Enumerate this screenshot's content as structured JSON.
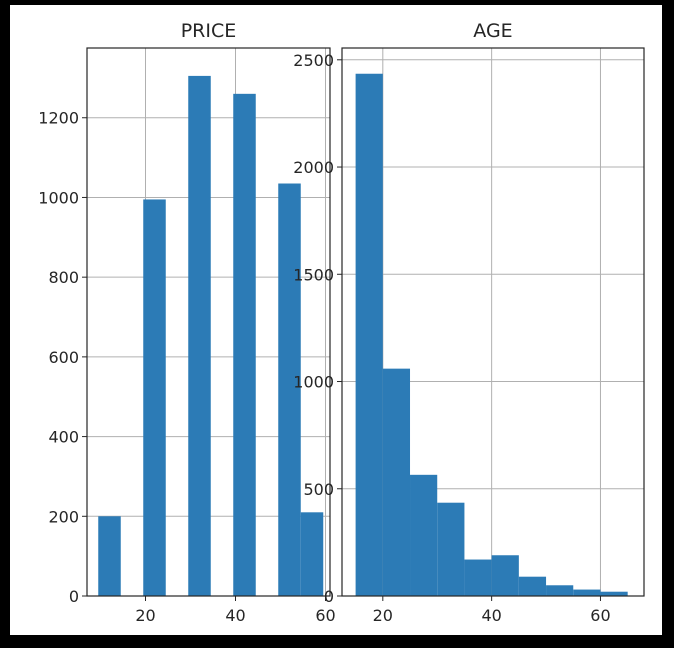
{
  "chart_data": [
    {
      "type": "bar",
      "title": "PRICE",
      "xlabel": "",
      "ylabel": "",
      "xlim": [
        7,
        61
      ],
      "ylim": [
        0,
        1375
      ],
      "bins": [
        {
          "x0": 9.5,
          "x1": 14.5,
          "value": 200
        },
        {
          "x0": 14.5,
          "x1": 19.5,
          "value": 0
        },
        {
          "x0": 19.5,
          "x1": 24.5,
          "value": 995
        },
        {
          "x0": 24.5,
          "x1": 29.5,
          "value": 0
        },
        {
          "x0": 29.5,
          "x1": 34.5,
          "value": 1305
        },
        {
          "x0": 34.5,
          "x1": 39.5,
          "value": 0
        },
        {
          "x0": 39.5,
          "x1": 44.5,
          "value": 1260
        },
        {
          "x0": 44.5,
          "x1": 49.5,
          "value": 0
        },
        {
          "x0": 49.5,
          "x1": 54.5,
          "value": 1035
        },
        {
          "x0": 54.5,
          "x1": 59.5,
          "value": 210
        }
      ],
      "xticks": [
        20,
        40,
        60
      ],
      "xtick_labels": [
        "20",
        "40",
        "60"
      ],
      "yticks": [
        0,
        200,
        400,
        600,
        800,
        1000,
        1200
      ],
      "ytick_labels": [
        "0",
        "200",
        "400",
        "600",
        "800",
        "1000",
        "1200"
      ],
      "grid": true,
      "color": "#2c7bb6"
    },
    {
      "type": "bar",
      "title": "AGE",
      "xlabel": "",
      "ylabel": "",
      "xlim": [
        12.5,
        68
      ],
      "ylim": [
        0,
        2555
      ],
      "bins": [
        {
          "x0": 15,
          "x1": 20,
          "value": 2435
        },
        {
          "x0": 20,
          "x1": 25,
          "value": 1060
        },
        {
          "x0": 25,
          "x1": 30,
          "value": 565
        },
        {
          "x0": 30,
          "x1": 35,
          "value": 435
        },
        {
          "x0": 35,
          "x1": 40,
          "value": 170
        },
        {
          "x0": 40,
          "x1": 45,
          "value": 190
        },
        {
          "x0": 45,
          "x1": 50,
          "value": 90
        },
        {
          "x0": 50,
          "x1": 55,
          "value": 50
        },
        {
          "x0": 55,
          "x1": 60,
          "value": 30
        },
        {
          "x0": 60,
          "x1": 65,
          "value": 20
        }
      ],
      "xticks": [
        20,
        40,
        60
      ],
      "xtick_labels": [
        "20",
        "40",
        "60"
      ],
      "yticks": [
        0,
        500,
        1000,
        1500,
        2000,
        2500
      ],
      "ytick_labels": [
        "0",
        "500",
        "1000",
        "1500",
        "2000",
        "2500"
      ],
      "grid": true,
      "color": "#2c7bb6"
    }
  ]
}
